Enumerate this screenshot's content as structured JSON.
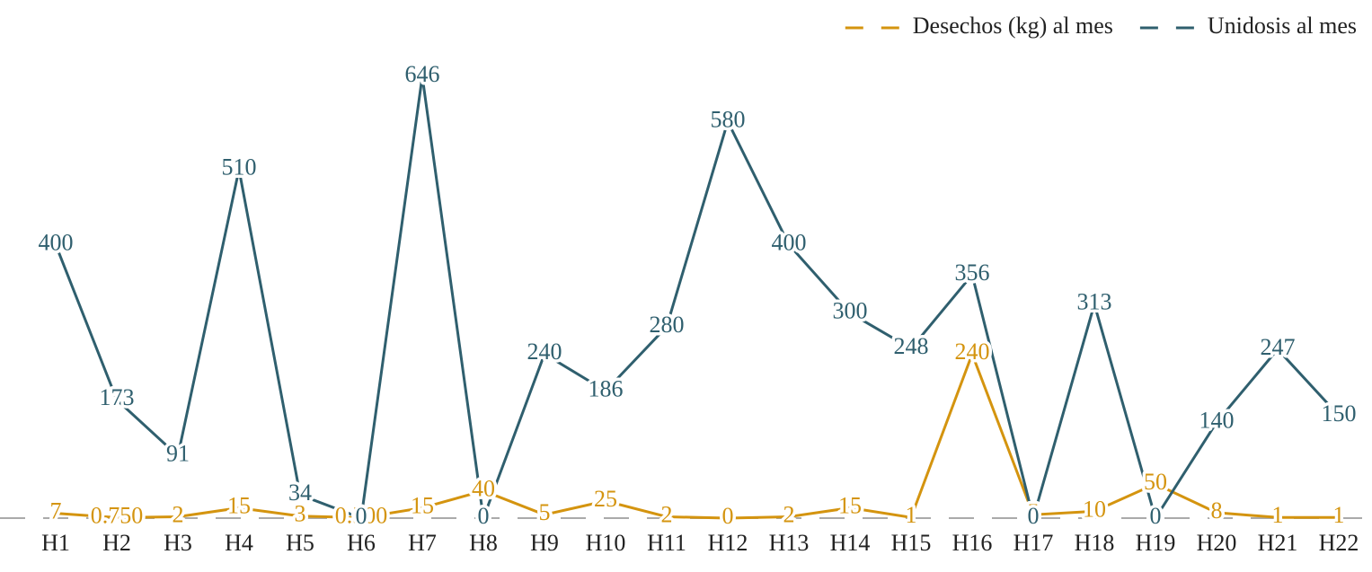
{
  "chart_data": {
    "type": "line",
    "categories": [
      "H1",
      "H2",
      "H3",
      "H4",
      "H5",
      "H6",
      "H7",
      "H8",
      "H9",
      "H10",
      "H11",
      "H12",
      "H13",
      "H14",
      "H15",
      "H16",
      "H17",
      "H18",
      "H19",
      "H20",
      "H21",
      "H22"
    ],
    "series": [
      {
        "name": "Desechos (kg) al mes",
        "color": "#d4940f",
        "values": [
          7,
          0.75,
          2,
          15,
          3,
          0.5,
          15,
          40,
          5,
          25,
          2,
          0,
          2,
          15,
          1,
          240,
          5,
          10,
          50,
          8,
          1,
          1
        ],
        "value_labels": [
          "7",
          "0.750",
          "2",
          "15",
          "3",
          "0.500",
          "15",
          "40",
          "5",
          "25",
          "2",
          "0",
          "2",
          "15",
          "1",
          "240",
          "5",
          "10",
          "50",
          "8",
          "1",
          "1"
        ]
      },
      {
        "name": "Unidosis al mes",
        "color": "#2f5f6e",
        "values": [
          400,
          173,
          91,
          510,
          34,
          0,
          646,
          0,
          240,
          186,
          280,
          580,
          400,
          300,
          248,
          356,
          0,
          313,
          0,
          140,
          247,
          150
        ]
      }
    ],
    "ylim": [
      0,
      700
    ],
    "legend": "top-right"
  }
}
